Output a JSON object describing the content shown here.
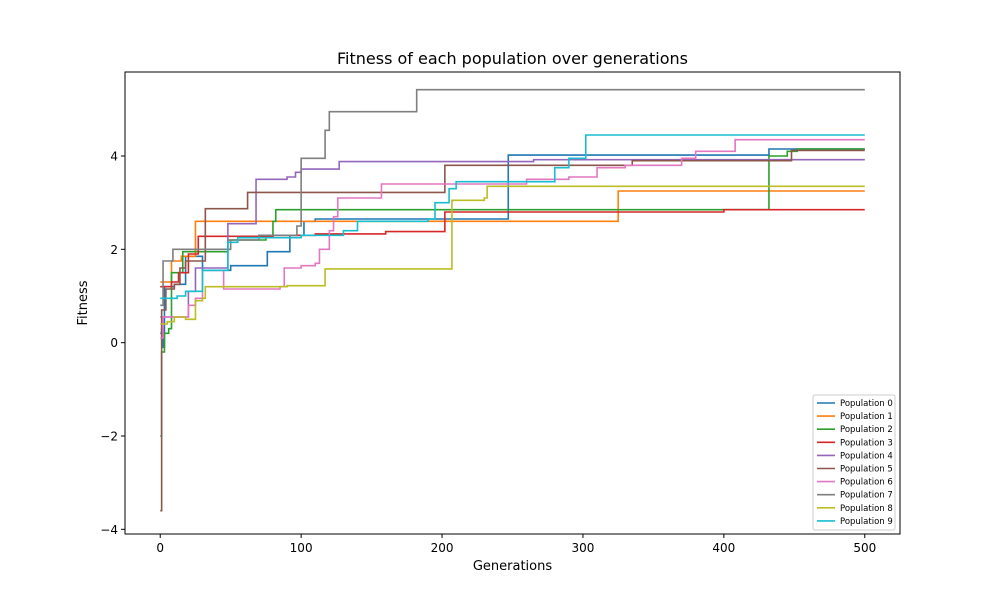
{
  "chart_data": {
    "type": "line",
    "title": "Fitness of each population over generations",
    "xlabel": "Generations",
    "ylabel": "Fitness",
    "xlim": [
      -25,
      525
    ],
    "ylim": [
      -4.1,
      5.8
    ],
    "xticks": [
      0,
      100,
      200,
      300,
      400,
      500
    ],
    "yticks": [
      -4,
      -2,
      0,
      2,
      4
    ],
    "ytick_labels": [
      "−4",
      "−2",
      "0",
      "2",
      "4"
    ],
    "legend_position": "lower right",
    "grid": false,
    "series": [
      {
        "name": "Population 0",
        "color": "#1f77b4",
        "points": [
          [
            0,
            0.2
          ],
          [
            1,
            0.3
          ],
          [
            2,
            -0.1
          ],
          [
            3,
            1.2
          ],
          [
            5,
            1.2
          ],
          [
            10,
            1.25
          ],
          [
            18,
            1.85
          ],
          [
            27,
            1.85
          ],
          [
            30,
            1.55
          ],
          [
            45,
            1.55
          ],
          [
            50,
            1.65
          ],
          [
            75,
            1.65
          ],
          [
            76,
            1.95
          ],
          [
            90,
            1.95
          ],
          [
            92,
            2.3
          ],
          [
            100,
            2.3
          ],
          [
            102,
            2.6
          ],
          [
            110,
            2.65
          ],
          [
            245,
            2.65
          ],
          [
            247,
            4.02
          ],
          [
            420,
            4.02
          ],
          [
            432,
            4.15
          ],
          [
            450,
            4.15
          ],
          [
            500,
            4.15
          ]
        ]
      },
      {
        "name": "Population 1",
        "color": "#ff7f0e",
        "points": [
          [
            0,
            1.3
          ],
          [
            4,
            1.3
          ],
          [
            8,
            1.75
          ],
          [
            15,
            1.85
          ],
          [
            22,
            1.85
          ],
          [
            25,
            2.6
          ],
          [
            50,
            2.6
          ],
          [
            323,
            2.6
          ],
          [
            325,
            3.25
          ],
          [
            500,
            3.25
          ]
        ]
      },
      {
        "name": "Population 2",
        "color": "#2ca02c",
        "points": [
          [
            0,
            -2.0
          ],
          [
            1,
            -0.2
          ],
          [
            3,
            0.2
          ],
          [
            6,
            0.3
          ],
          [
            8,
            1.5
          ],
          [
            12,
            1.5
          ],
          [
            16,
            1.95
          ],
          [
            45,
            1.95
          ],
          [
            48,
            2.2
          ],
          [
            75,
            2.25
          ],
          [
            80,
            2.6
          ],
          [
            82,
            2.85
          ],
          [
            430,
            2.85
          ],
          [
            432,
            4.0
          ],
          [
            445,
            4.1
          ],
          [
            452,
            4.15
          ],
          [
            500,
            4.15
          ]
        ]
      },
      {
        "name": "Population 3",
        "color": "#d62728",
        "points": [
          [
            0,
            1.2
          ],
          [
            8,
            1.3
          ],
          [
            13,
            1.5
          ],
          [
            20,
            1.9
          ],
          [
            25,
            1.9
          ],
          [
            27,
            2.28
          ],
          [
            80,
            2.3
          ],
          [
            100,
            2.3
          ],
          [
            110,
            2.33
          ],
          [
            160,
            2.38
          ],
          [
            200,
            2.38
          ],
          [
            202,
            2.8
          ],
          [
            380,
            2.8
          ],
          [
            400,
            2.85
          ],
          [
            500,
            2.85
          ]
        ]
      },
      {
        "name": "Population 4",
        "color": "#9467bd",
        "points": [
          [
            0,
            0.55
          ],
          [
            18,
            0.55
          ],
          [
            20,
            1.1
          ],
          [
            25,
            1.6
          ],
          [
            45,
            1.6
          ],
          [
            48,
            2.55
          ],
          [
            65,
            2.55
          ],
          [
            68,
            3.5
          ],
          [
            90,
            3.55
          ],
          [
            96,
            3.65
          ],
          [
            100,
            3.72
          ],
          [
            125,
            3.72
          ],
          [
            127,
            3.88
          ],
          [
            260,
            3.88
          ],
          [
            265,
            3.92
          ],
          [
            500,
            3.92
          ]
        ]
      },
      {
        "name": "Population 5",
        "color": "#8c564b",
        "points": [
          [
            0,
            -3.6
          ],
          [
            1,
            0.7
          ],
          [
            4,
            1.15
          ],
          [
            10,
            1.25
          ],
          [
            14,
            1.6
          ],
          [
            18,
            1.75
          ],
          [
            30,
            1.75
          ],
          [
            32,
            2.87
          ],
          [
            60,
            2.87
          ],
          [
            62,
            3.22
          ],
          [
            200,
            3.22
          ],
          [
            202,
            3.8
          ],
          [
            330,
            3.8
          ],
          [
            335,
            3.9
          ],
          [
            445,
            3.9
          ],
          [
            448,
            4.12
          ],
          [
            500,
            4.12
          ]
        ]
      },
      {
        "name": "Population 6",
        "color": "#e377c2",
        "points": [
          [
            0,
            0.1
          ],
          [
            2,
            0.55
          ],
          [
            15,
            0.55
          ],
          [
            20,
            0.8
          ],
          [
            25,
            0.95
          ],
          [
            30,
            1.55
          ],
          [
            40,
            1.55
          ],
          [
            45,
            1.15
          ],
          [
            85,
            1.2
          ],
          [
            88,
            1.6
          ],
          [
            100,
            1.65
          ],
          [
            110,
            1.7
          ],
          [
            113,
            2.0
          ],
          [
            120,
            2.4
          ],
          [
            123,
            2.7
          ],
          [
            126,
            3.1
          ],
          [
            155,
            3.1
          ],
          [
            157,
            3.4
          ],
          [
            240,
            3.4
          ],
          [
            260,
            3.5
          ],
          [
            290,
            3.55
          ],
          [
            310,
            3.75
          ],
          [
            330,
            3.8
          ],
          [
            370,
            3.95
          ],
          [
            380,
            4.1
          ],
          [
            405,
            4.1
          ],
          [
            408,
            4.35
          ],
          [
            500,
            4.35
          ]
        ]
      },
      {
        "name": "Population 7",
        "color": "#7f7f7f",
        "points": [
          [
            0,
            0.8
          ],
          [
            2,
            1.75
          ],
          [
            7,
            1.75
          ],
          [
            9,
            2.0
          ],
          [
            45,
            2.0
          ],
          [
            50,
            2.2
          ],
          [
            70,
            2.3
          ],
          [
            95,
            2.3
          ],
          [
            97,
            2.5
          ],
          [
            100,
            3.95
          ],
          [
            115,
            3.95
          ],
          [
            117,
            4.55
          ],
          [
            120,
            4.95
          ],
          [
            180,
            4.95
          ],
          [
            182,
            5.42
          ],
          [
            500,
            5.42
          ]
        ]
      },
      {
        "name": "Population 8",
        "color": "#bcbd22",
        "points": [
          [
            0,
            0.4
          ],
          [
            5,
            0.45
          ],
          [
            10,
            0.55
          ],
          [
            15,
            0.55
          ],
          [
            18,
            0.5
          ],
          [
            25,
            0.9
          ],
          [
            30,
            0.95
          ],
          [
            32,
            1.2
          ],
          [
            85,
            1.2
          ],
          [
            90,
            1.22
          ],
          [
            115,
            1.22
          ],
          [
            117,
            1.58
          ],
          [
            205,
            1.58
          ],
          [
            207,
            3.05
          ],
          [
            230,
            3.1
          ],
          [
            232,
            3.35
          ],
          [
            500,
            3.35
          ]
        ]
      },
      {
        "name": "Population 9",
        "color": "#17becf",
        "points": [
          [
            0,
            0.95
          ],
          [
            8,
            0.95
          ],
          [
            12,
            1.0
          ],
          [
            18,
            1.1
          ],
          [
            30,
            1.55
          ],
          [
            45,
            1.55
          ],
          [
            48,
            2.15
          ],
          [
            55,
            2.25
          ],
          [
            95,
            2.25
          ],
          [
            100,
            2.3
          ],
          [
            130,
            2.4
          ],
          [
            140,
            2.6
          ],
          [
            190,
            2.65
          ],
          [
            195,
            3.0
          ],
          [
            205,
            3.3
          ],
          [
            210,
            3.45
          ],
          [
            280,
            3.75
          ],
          [
            290,
            3.95
          ],
          [
            302,
            4.45
          ],
          [
            500,
            4.45
          ]
        ]
      }
    ]
  }
}
